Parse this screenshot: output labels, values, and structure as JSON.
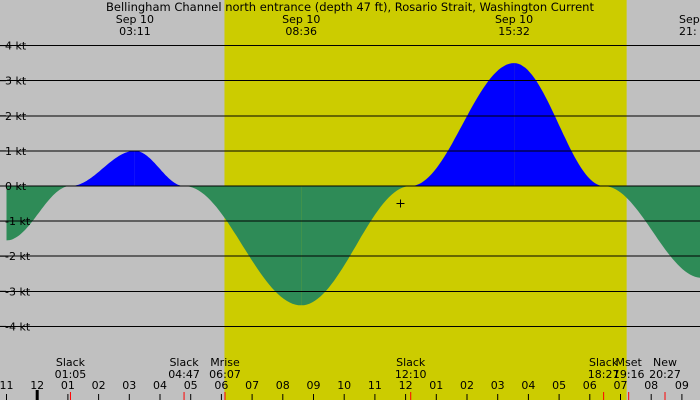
{
  "chart_data": {
    "type": "area",
    "title": "Bellingham Channel north entrance (depth 47 ft), Rosario Strait, Washington Current",
    "y_unit": "kt",
    "ylim": [
      -5,
      4
    ],
    "y_ticks": [
      "4 kt",
      "3 kt",
      "2 kt",
      "1 kt",
      "0 kt",
      "-1 kt",
      "-2 kt",
      "-3 kt",
      "-4 kt"
    ],
    "x_hour_range": [
      -1,
      22.3
    ],
    "x_hour_ticks": [
      "11",
      "12",
      "01",
      "02",
      "03",
      "04",
      "05",
      "06",
      "07",
      "08",
      "09",
      "10",
      "11",
      "12",
      "01",
      "02",
      "03",
      "04",
      "05",
      "06",
      "07",
      "08",
      "09"
    ],
    "daylight_hours": [
      6.1,
      19.2
    ],
    "peaks": [
      {
        "date": "Sep 10",
        "time": "03:11",
        "value": 1.0
      },
      {
        "date": "Sep 10",
        "time": "08:36",
        "value": -3.4
      },
      {
        "date": "Sep 10",
        "time": "15:32",
        "value": 3.5
      },
      {
        "date": "Sep",
        "time": "21:",
        "value": -2.6
      }
    ],
    "series": [
      {
        "curve_points": [
          {
            "time": "-01:00",
            "value": -1.55
          },
          {
            "time": "01:05",
            "value": 0
          },
          {
            "time": "03:11",
            "value": 1.0
          },
          {
            "time": "04:47",
            "value": 0
          },
          {
            "time": "08:36",
            "value": -3.4
          },
          {
            "time": "12:10",
            "value": 0
          },
          {
            "time": "15:32",
            "value": 3.5
          },
          {
            "time": "18:27",
            "value": 0
          },
          {
            "time": "21:40",
            "value": -2.62
          },
          {
            "time": "22:18",
            "value": -2.6
          }
        ]
      }
    ],
    "events": [
      {
        "label": "Slack",
        "time": "01:05"
      },
      {
        "label": "Slack",
        "time": "04:47"
      },
      {
        "label": "Mrise",
        "time": "06:07"
      },
      {
        "label": "Slack",
        "time": "12:10"
      },
      {
        "label": "Slack",
        "time": "18:27"
      },
      {
        "label": "Mset",
        "time": "19:16"
      },
      {
        "label": "New",
        "time": "20:27"
      }
    ],
    "current_marker": {
      "time": "11:50",
      "value": -0.5
    },
    "colors": {
      "flood": "#0000ff",
      "ebb": "#2e8b57",
      "daylight": "#cccc00",
      "night": "#c0c0c0",
      "grid": "#000000",
      "tick_red": "#ff0000"
    }
  }
}
